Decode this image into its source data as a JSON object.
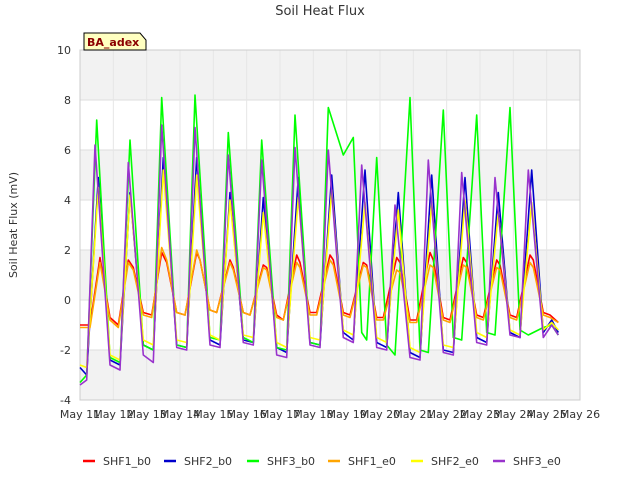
{
  "chart_data": {
    "type": "line",
    "title": "Soil Heat Flux",
    "ylabel": "Soil Heat Flux (mV)",
    "xlabel": "",
    "badge": "BA_adex",
    "ylim": [
      -4,
      10
    ],
    "yticks": [
      -4,
      -2,
      0,
      2,
      4,
      6,
      8,
      10
    ],
    "xlim": [
      11,
      26
    ],
    "xticks": [
      11,
      12,
      13,
      14,
      15,
      16,
      17,
      18,
      19,
      20,
      21,
      22,
      23,
      24,
      25,
      26
    ],
    "xtick_labels": [
      "May 11",
      "May 12",
      "May 13",
      "May 14",
      "May 15",
      "May 16",
      "May 17",
      "May 18",
      "May 19",
      "May 20",
      "May 21",
      "May 22",
      "May 23",
      "May 24",
      "May 25",
      "May 26"
    ],
    "grid": true,
    "legend_placement": "bottom",
    "x_unit": "day of May",
    "series": [
      {
        "name": "SHF1_b0",
        "color": "#ff0000",
        "x": [
          11.0,
          11.3,
          11.6,
          11.9,
          12.15,
          12.45,
          12.6,
          12.9,
          13.15,
          13.45,
          13.6,
          13.9,
          14.15,
          14.5,
          14.6,
          14.9,
          15.1,
          15.5,
          15.6,
          15.9,
          16.1,
          16.5,
          16.6,
          16.9,
          17.1,
          17.5,
          17.6,
          17.9,
          18.1,
          18.5,
          18.6,
          18.9,
          19.1,
          19.5,
          19.6,
          19.9,
          20.1,
          20.5,
          20.6,
          20.9,
          21.1,
          21.5,
          21.6,
          21.9,
          22.1,
          22.5,
          22.6,
          22.9,
          23.1,
          23.5,
          23.6,
          23.9,
          24.1,
          24.5,
          24.6,
          24.9,
          25.1,
          25.35
        ],
        "y": [
          -1.0,
          -1.0,
          1.7,
          -0.7,
          -1.0,
          1.6,
          1.3,
          -0.5,
          -0.6,
          1.9,
          1.5,
          -0.5,
          -0.6,
          1.9,
          1.6,
          -0.4,
          -0.5,
          1.6,
          1.3,
          -0.5,
          -0.6,
          1.4,
          1.3,
          -0.6,
          -0.8,
          1.8,
          1.5,
          -0.5,
          -0.5,
          1.8,
          1.6,
          -0.5,
          -0.6,
          1.5,
          1.4,
          -0.7,
          -0.7,
          1.7,
          1.5,
          -0.8,
          -0.8,
          1.9,
          1.6,
          -0.7,
          -0.8,
          1.7,
          1.5,
          -0.6,
          -0.7,
          1.6,
          1.4,
          -0.6,
          -0.7,
          1.8,
          1.6,
          -0.5,
          -0.6,
          -0.9
        ]
      },
      {
        "name": "SHF2_b0",
        "color": "#0000cc",
        "x": [
          11.0,
          11.2,
          11.55,
          11.9,
          12.2,
          12.5,
          12.9,
          13.2,
          13.5,
          13.9,
          14.2,
          14.5,
          14.9,
          15.2,
          15.5,
          15.9,
          16.2,
          16.5,
          16.9,
          17.2,
          17.55,
          17.9,
          18.2,
          18.55,
          18.9,
          19.2,
          19.55,
          19.9,
          20.2,
          20.55,
          20.9,
          21.2,
          21.55,
          21.9,
          22.2,
          22.55,
          22.9,
          23.2,
          23.55,
          23.9,
          24.2,
          24.55,
          24.9,
          25.15,
          25.35
        ],
        "y": [
          -2.7,
          -3.0,
          4.9,
          -2.4,
          -2.6,
          4.3,
          -1.8,
          -2.0,
          5.7,
          -1.8,
          -1.9,
          5.7,
          -1.6,
          -1.8,
          4.3,
          -1.6,
          -1.7,
          4.1,
          -1.9,
          -2.1,
          4.9,
          -1.7,
          -1.8,
          5.0,
          -1.3,
          -1.6,
          5.2,
          -1.7,
          -1.9,
          4.3,
          -2.1,
          -2.3,
          5.0,
          -2.0,
          -2.1,
          4.9,
          -1.5,
          -1.7,
          4.3,
          -1.3,
          -1.5,
          5.2,
          -1.3,
          -0.8,
          -1.3
        ]
      },
      {
        "name": "SHF3_b0",
        "color": "#00ff00",
        "x": [
          11.0,
          11.2,
          11.5,
          11.9,
          12.2,
          12.5,
          12.9,
          13.2,
          13.45,
          13.9,
          14.2,
          14.45,
          14.9,
          15.2,
          15.45,
          15.9,
          16.2,
          16.45,
          16.9,
          17.2,
          17.45,
          17.9,
          18.2,
          18.45,
          18.9,
          19.2,
          19.45,
          19.6,
          19.9,
          20.2,
          20.45,
          20.9,
          21.2,
          21.45,
          21.9,
          22.2,
          22.45,
          22.9,
          23.2,
          23.45,
          23.9,
          24.2,
          24.45,
          24.9,
          25.15,
          25.35
        ],
        "y": [
          -3.3,
          -3.0,
          7.2,
          -2.3,
          -2.5,
          6.4,
          -1.8,
          -2.0,
          8.1,
          -1.8,
          -1.9,
          8.2,
          -1.5,
          -1.6,
          6.7,
          -1.5,
          -1.7,
          6.4,
          -1.9,
          -2.0,
          7.4,
          -1.7,
          -1.8,
          7.7,
          5.8,
          6.5,
          -1.3,
          -1.6,
          5.7,
          -1.8,
          -2.2,
          8.1,
          -2.0,
          -2.1,
          7.6,
          -1.5,
          -1.6,
          7.4,
          -1.3,
          -1.4,
          7.7,
          -1.2,
          -1.4,
          -1.1,
          -1.0,
          -1.4
        ]
      },
      {
        "name": "SHF1_e0",
        "color": "#ffa500",
        "x": [
          11.0,
          11.3,
          11.6,
          11.9,
          12.15,
          12.45,
          12.6,
          12.9,
          13.15,
          13.45,
          13.6,
          13.9,
          14.15,
          14.5,
          14.6,
          14.9,
          15.1,
          15.5,
          15.6,
          15.9,
          16.1,
          16.5,
          16.6,
          16.9,
          17.1,
          17.5,
          17.6,
          17.9,
          18.1,
          18.5,
          18.6,
          18.9,
          19.1,
          19.5,
          19.6,
          19.9,
          20.1,
          20.5,
          20.6,
          20.9,
          21.1,
          21.5,
          21.6,
          21.9,
          22.1,
          22.5,
          22.6,
          22.9,
          23.1,
          23.5,
          23.6,
          23.9,
          24.1,
          24.5,
          24.6,
          24.9,
          25.1,
          25.35
        ],
        "y": [
          -1.1,
          -1.1,
          1.5,
          -0.8,
          -1.1,
          1.5,
          1.2,
          -0.6,
          -0.7,
          2.1,
          1.6,
          -0.5,
          -0.6,
          2.0,
          1.6,
          -0.4,
          -0.5,
          1.5,
          1.2,
          -0.5,
          -0.6,
          1.3,
          1.2,
          -0.7,
          -0.8,
          1.5,
          1.3,
          -0.6,
          -0.6,
          1.6,
          1.4,
          -0.6,
          -0.7,
          1.4,
          1.3,
          -0.8,
          -0.8,
          1.2,
          1.1,
          -0.9,
          -0.9,
          1.4,
          1.3,
          -0.8,
          -0.9,
          1.4,
          1.3,
          -0.7,
          -0.8,
          1.3,
          1.2,
          -0.7,
          -0.8,
          1.5,
          1.3,
          -0.6,
          -0.7,
          -0.9
        ]
      },
      {
        "name": "SHF2_e0",
        "color": "#ffff00",
        "x": [
          11.0,
          11.2,
          11.55,
          11.9,
          12.2,
          12.5,
          12.9,
          13.2,
          13.5,
          13.9,
          14.2,
          14.5,
          14.9,
          15.2,
          15.5,
          15.9,
          16.2,
          16.5,
          16.9,
          17.2,
          17.55,
          17.9,
          18.2,
          18.55,
          18.9,
          19.2,
          19.55,
          19.9,
          20.2,
          20.55,
          20.9,
          21.2,
          21.55,
          21.9,
          22.2,
          22.55,
          22.9,
          23.2,
          23.55,
          23.9,
          24.2,
          24.55,
          24.9,
          25.15,
          25.35
        ],
        "y": [
          -2.6,
          -2.7,
          4.5,
          -2.2,
          -2.4,
          4.2,
          -1.6,
          -1.8,
          5.2,
          -1.6,
          -1.7,
          5.0,
          -1.4,
          -1.6,
          4.0,
          -1.4,
          -1.5,
          3.5,
          -1.7,
          -1.9,
          4.1,
          -1.5,
          -1.6,
          4.4,
          -1.2,
          -1.4,
          3.9,
          -1.5,
          -1.7,
          3.6,
          -1.9,
          -2.1,
          3.9,
          -1.8,
          -1.9,
          4.0,
          -1.3,
          -1.5,
          3.5,
          -1.2,
          -1.4,
          3.9,
          -1.2,
          -0.9,
          -1.2
        ]
      },
      {
        "name": "SHF3_e0",
        "color": "#9933cc",
        "x": [
          11.0,
          11.2,
          11.45,
          11.9,
          12.2,
          12.45,
          12.9,
          13.2,
          13.45,
          13.9,
          14.2,
          14.45,
          14.9,
          15.2,
          15.45,
          15.9,
          16.2,
          16.45,
          16.9,
          17.2,
          17.45,
          17.9,
          18.2,
          18.45,
          18.9,
          19.2,
          19.45,
          19.9,
          20.2,
          20.45,
          20.9,
          21.2,
          21.45,
          21.9,
          22.2,
          22.45,
          22.9,
          23.2,
          23.45,
          23.9,
          24.2,
          24.45,
          24.9,
          25.15,
          25.35
        ],
        "y": [
          -3.4,
          -3.2,
          6.2,
          -2.6,
          -2.8,
          5.5,
          -2.2,
          -2.5,
          7.0,
          -1.9,
          -2.0,
          6.9,
          -1.8,
          -1.9,
          5.8,
          -1.7,
          -1.8,
          5.6,
          -2.2,
          -2.3,
          6.1,
          -1.8,
          -1.9,
          6.0,
          -1.5,
          -1.7,
          5.4,
          -1.9,
          -2.0,
          3.8,
          -2.3,
          -2.4,
          5.6,
          -2.1,
          -2.2,
          5.1,
          -1.7,
          -1.8,
          4.9,
          -1.4,
          -1.5,
          5.2,
          -1.5,
          -1.0,
          -1.4
        ]
      }
    ]
  }
}
